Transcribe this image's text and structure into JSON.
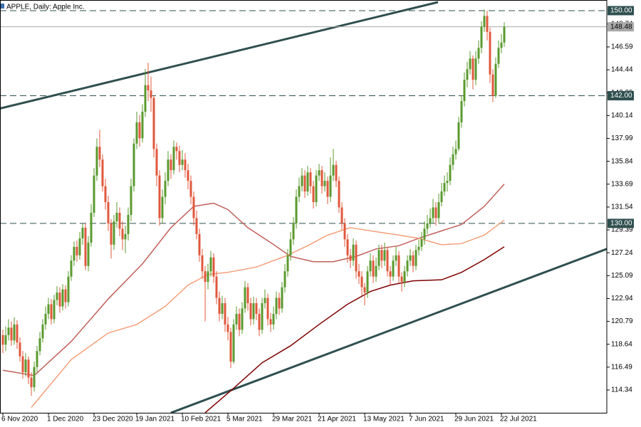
{
  "chart_data": {
    "type": "candlestick",
    "title": "APPLE, Daily:  Apple Inc.",
    "up_color": "#5a9a2e",
    "down_color": "#e0583c",
    "xlim": [
      -1,
      212
    ],
    "ylim": [
      112.2,
      151.0
    ],
    "xticks": [
      {
        "value": 0,
        "label": "6 Nov 2020"
      },
      {
        "value": 16,
        "label": "1 Dec 2020"
      },
      {
        "value": 32,
        "label": "23 Dec 2020"
      },
      {
        "value": 47,
        "label": "19 Jan 2021"
      },
      {
        "value": 63,
        "label": "10 Feb 2021"
      },
      {
        "value": 79,
        "label": "5 Mar 2021"
      },
      {
        "value": 95,
        "label": "29 Mar 2021"
      },
      {
        "value": 111,
        "label": "21 Apr 2021"
      },
      {
        "value": 127,
        "label": "13 May 2021"
      },
      {
        "value": 143,
        "label": "7 Jun 2021"
      },
      {
        "value": 159,
        "label": "29 Jun 2021"
      },
      {
        "value": 175,
        "label": "22 Jul 2021"
      }
    ],
    "yticks": [
      114.34,
      116.49,
      118.64,
      120.79,
      122.94,
      125.09,
      127.24,
      129.39,
      131.54,
      133.69,
      135.84,
      137.99,
      140.14,
      142.29,
      144.44,
      146.59,
      148.74
    ],
    "open": [
      119.5,
      118.6,
      119.5,
      120.2,
      119.0,
      120.5,
      118.8,
      117.5,
      116.0,
      117.2,
      115.5,
      114.6,
      116.5,
      118.0,
      119.2,
      120.5,
      121.5,
      122.4,
      121.0,
      122.8,
      123.5,
      122.2,
      123.8,
      122.6,
      125.0,
      126.5,
      127.8,
      127.0,
      128.6,
      129.6,
      126.0,
      128.2,
      131.0,
      134.5,
      137.2,
      136.0,
      133.5,
      132.0,
      130.0,
      128.0,
      130.2,
      131.0,
      129.5,
      128.5,
      129.0,
      130.8,
      133.5,
      137.5,
      139.5,
      138.0,
      140.5,
      143.0,
      142.5,
      141.8,
      137.0,
      134.5,
      130.5,
      132.5,
      134.0,
      136.0,
      135.0,
      137.2,
      136.8,
      135.5,
      136.0,
      135.0,
      134.0,
      132.5,
      130.5,
      129.0,
      127.0,
      125.5,
      124.5,
      125.5,
      126.8,
      125.0,
      123.0,
      121.5,
      122.5,
      120.5,
      119.8,
      117.0,
      120.5,
      121.5,
      120.0,
      122.0,
      124.0,
      122.5,
      121.0,
      122.5,
      121.5,
      120.0,
      122.5,
      123.0,
      121.0,
      120.5,
      121.5,
      123.0,
      122.0,
      124.0,
      125.5,
      127.0,
      128.5,
      130.0,
      132.5,
      133.5,
      134.5,
      133.0,
      134.8,
      133.5,
      132.0,
      134.5,
      135.0,
      133.5,
      134.0,
      132.5,
      134.5,
      135.5,
      134.0,
      131.5,
      130.0,
      128.5,
      127.0,
      126.5,
      128.0,
      125.5,
      125.0,
      124.0,
      123.5,
      125.5,
      126.5,
      125.0,
      126.0,
      127.5,
      126.5,
      127.5,
      125.5,
      125.0,
      126.5,
      127.0,
      125.0,
      124.5,
      125.5,
      126.5,
      127.0,
      126.0,
      127.5,
      127.8,
      128.5,
      129.5,
      130.0,
      130.5,
      131.5,
      130.5,
      132.0,
      133.0,
      133.8,
      134.0,
      135.5,
      136.5,
      137.0,
      139.5,
      141.5,
      143.5,
      144.5,
      145.5,
      143.5,
      145.5,
      146.5,
      148.5,
      149.5,
      148.0,
      144.0,
      142.0,
      145.0,
      146.5,
      147.0
    ],
    "high": [
      120.0,
      120.3,
      121.0,
      120.8,
      121.2,
      120.9,
      119.3,
      118.0,
      117.8,
      117.5,
      116.0,
      117.0,
      118.5,
      119.8,
      121.0,
      122.2,
      123.0,
      122.9,
      123.3,
      124.1,
      124.0,
      124.3,
      124.2,
      125.5,
      127.0,
      128.3,
      128.4,
      129.2,
      130.0,
      130.0,
      128.8,
      131.8,
      135.2,
      138.0,
      138.8,
      136.5,
      134.2,
      132.6,
      130.4,
      130.8,
      132.0,
      131.5,
      130.2,
      129.8,
      131.5,
      134.2,
      138.0,
      140.5,
      140.2,
      141.2,
      144.5,
      145.1,
      143.8,
      142.0,
      137.5,
      135.0,
      133.2,
      134.8,
      136.8,
      136.5,
      137.8,
      137.6,
      137.3,
      136.9,
      136.6,
      135.6,
      134.5,
      133.0,
      131.2,
      129.5,
      127.6,
      126.0,
      126.2,
      127.4,
      127.2,
      125.5,
      123.6,
      123.2,
      123.0,
      121.2,
      120.2,
      121.0,
      122.2,
      122.0,
      122.6,
      124.6,
      124.4,
      123.0,
      123.1,
      123.0,
      122.0,
      123.0,
      123.8,
      123.4,
      121.6,
      122.2,
      123.6,
      123.5,
      124.5,
      126.2,
      127.6,
      129.2,
      130.6,
      133.2,
      134.3,
      135.2,
      135.0,
      135.4,
      135.2,
      134.0,
      135.0,
      135.6,
      135.4,
      134.8,
      134.4,
      136.2,
      137.0,
      135.9,
      134.4,
      132.0,
      130.5,
      129.0,
      127.6,
      128.6,
      128.4,
      126.2,
      125.5,
      124.4,
      126.0,
      127.2,
      127.0,
      126.8,
      128.0,
      128.0,
      128.2,
      127.8,
      126.0,
      127.0,
      127.8,
      127.4,
      125.4,
      126.0,
      127.0,
      127.6,
      127.4,
      128.0,
      128.5,
      129.2,
      130.2,
      130.8,
      131.4,
      132.3,
      132.0,
      132.8,
      133.8,
      134.5,
      134.8,
      136.2,
      137.2,
      137.8,
      140.0,
      142.0,
      144.2,
      145.2,
      146.2,
      145.8,
      146.2,
      147.2,
      149.0,
      150.1,
      150.0,
      148.4,
      144.5,
      145.6,
      147.2,
      147.8,
      148.9
    ],
    "low": [
      117.8,
      118.0,
      119.0,
      118.5,
      118.6,
      118.2,
      117.0,
      115.4,
      115.6,
      114.9,
      113.8,
      114.2,
      116.0,
      117.6,
      118.8,
      120.0,
      121.0,
      120.5,
      120.6,
      122.3,
      121.6,
      121.8,
      122.0,
      122.2,
      124.6,
      126.0,
      126.4,
      126.6,
      128.0,
      125.6,
      125.5,
      127.8,
      130.6,
      134.0,
      135.3,
      133.0,
      131.3,
      129.3,
      126.7,
      127.5,
      129.6,
      128.8,
      127.5,
      127.2,
      128.4,
      130.2,
      133.0,
      137.0,
      137.2,
      137.6,
      140.0,
      141.5,
      140.5,
      136.2,
      133.5,
      129.8,
      130.0,
      131.8,
      133.5,
      134.2,
      134.6,
      136.0,
      134.8,
      135.0,
      134.3,
      133.2,
      131.8,
      129.8,
      128.5,
      126.4,
      124.8,
      120.8,
      123.8,
      125.0,
      124.4,
      122.4,
      120.8,
      121.0,
      119.8,
      119.0,
      116.4,
      116.8,
      120.0,
      119.4,
      119.6,
      121.6,
      121.8,
      120.4,
      120.5,
      120.9,
      119.4,
      119.6,
      122.0,
      120.4,
      119.8,
      120.0,
      121.0,
      121.4,
      121.6,
      123.5,
      125.0,
      126.5,
      128.0,
      129.5,
      132.0,
      133.0,
      132.4,
      132.6,
      132.8,
      131.4,
      131.6,
      134.0,
      132.8,
      133.0,
      131.8,
      132.0,
      134.0,
      133.4,
      131.0,
      129.4,
      127.8,
      126.3,
      125.8,
      126.0,
      124.8,
      124.3,
      123.2,
      122.3,
      123.0,
      125.0,
      124.4,
      124.5,
      125.6,
      125.8,
      126.0,
      125.0,
      124.2,
      124.6,
      126.0,
      124.4,
      123.6,
      124.0,
      125.0,
      126.0,
      125.4,
      125.6,
      127.0,
      127.4,
      128.0,
      129.0,
      129.6,
      130.0,
      129.8,
      130.0,
      131.6,
      132.6,
      133.0,
      133.6,
      135.0,
      136.0,
      136.8,
      139.0,
      141.0,
      142.8,
      144.0,
      142.6,
      143.0,
      145.0,
      146.0,
      148.0,
      147.2,
      143.2,
      141.4,
      141.8,
      144.6,
      146.0,
      146.6
    ],
    "close": [
      118.6,
      119.5,
      120.2,
      119.0,
      120.5,
      118.8,
      117.5,
      116.0,
      117.2,
      115.5,
      114.6,
      116.5,
      118.0,
      119.2,
      120.5,
      121.5,
      122.4,
      121.0,
      122.8,
      123.5,
      122.2,
      123.8,
      122.6,
      125.0,
      126.5,
      127.8,
      127.0,
      128.6,
      129.6,
      126.0,
      128.2,
      131.0,
      134.5,
      137.2,
      136.0,
      133.5,
      132.0,
      130.0,
      128.0,
      130.2,
      131.0,
      129.5,
      128.5,
      129.0,
      130.8,
      133.5,
      137.5,
      139.5,
      138.0,
      140.5,
      143.0,
      142.5,
      141.8,
      137.0,
      134.5,
      130.5,
      132.5,
      134.0,
      136.0,
      135.0,
      137.2,
      136.8,
      135.5,
      136.0,
      135.0,
      134.0,
      132.5,
      130.5,
      129.0,
      127.0,
      125.5,
      124.5,
      125.5,
      126.8,
      125.0,
      123.0,
      121.5,
      122.5,
      120.5,
      119.8,
      117.0,
      120.5,
      121.5,
      120.0,
      122.0,
      124.0,
      122.5,
      121.0,
      122.5,
      121.5,
      120.0,
      122.5,
      123.0,
      121.0,
      120.5,
      121.5,
      123.0,
      122.0,
      124.0,
      125.5,
      127.0,
      128.5,
      130.0,
      132.5,
      133.5,
      134.5,
      133.0,
      134.8,
      133.5,
      132.0,
      134.5,
      135.0,
      133.5,
      134.0,
      132.5,
      134.5,
      135.5,
      134.0,
      131.5,
      130.0,
      128.5,
      127.0,
      126.5,
      128.0,
      125.5,
      125.0,
      124.0,
      123.5,
      125.5,
      126.5,
      125.0,
      126.0,
      127.5,
      126.5,
      127.5,
      125.5,
      125.0,
      126.5,
      127.0,
      125.0,
      124.5,
      125.5,
      126.5,
      127.0,
      126.0,
      127.5,
      127.8,
      128.5,
      129.5,
      130.0,
      130.5,
      131.5,
      130.5,
      132.0,
      133.0,
      133.8,
      134.0,
      135.5,
      136.5,
      137.0,
      139.5,
      141.5,
      143.5,
      144.5,
      145.5,
      143.5,
      145.5,
      146.5,
      148.5,
      149.5,
      148.0,
      144.0,
      142.0,
      145.0,
      146.5,
      147.0,
      148.48
    ],
    "moving_averages": [
      {
        "color": "#c0605a",
        "x": [
          0,
          11,
          24,
          37,
          49,
          59,
          67,
          74,
          79,
          86,
          94,
          101,
          109,
          116,
          124,
          131,
          139,
          146,
          154,
          161,
          169,
          176
        ],
        "values": [
          116.2,
          115.7,
          118.9,
          122.9,
          126.2,
          129.6,
          131.6,
          131.9,
          131.3,
          129.6,
          128.2,
          126.9,
          126.4,
          126.4,
          126.9,
          127.6,
          127.9,
          128.6,
          129.3,
          129.9,
          131.6,
          133.7
        ]
      },
      {
        "color": "#f4a07a",
        "x": [
          10,
          24,
          37,
          47,
          57,
          65,
          72,
          79,
          89,
          99,
          107,
          114,
          122,
          129,
          139,
          146,
          154,
          161,
          169,
          176
        ],
        "values": [
          112.7,
          117.2,
          119.7,
          120.5,
          122.2,
          124.2,
          125.2,
          125.4,
          125.9,
          126.9,
          127.9,
          128.9,
          129.6,
          129.3,
          128.9,
          128.6,
          128.0,
          128.1,
          128.9,
          130.3
        ]
      },
      {
        "color": "#800000",
        "x": [
          71,
          81,
          91,
          101,
          111,
          121,
          129,
          136,
          144,
          154,
          161,
          169,
          176
        ],
        "values": [
          112.2,
          114.5,
          116.9,
          118.5,
          120.5,
          122.4,
          123.6,
          124.2,
          124.6,
          124.7,
          125.4,
          126.6,
          127.8
        ]
      }
    ],
    "trendlines": [
      {
        "color": "#2f4f4f",
        "x": [
          -1,
          152.75
        ],
        "values": [
          140.8,
          150.8
        ]
      },
      {
        "color": "#2f4f4f",
        "x": [
          59,
          212
        ],
        "values": [
          112.2,
          127.6
        ]
      }
    ],
    "levels": [
      {
        "value": 150,
        "label": "150.00"
      },
      {
        "value": 142,
        "label": "142.00"
      },
      {
        "value": 130,
        "label": "130.00"
      }
    ],
    "level_color": "#2f4f4f",
    "price_line": 148.48,
    "price_color": "#a8a8a8"
  }
}
